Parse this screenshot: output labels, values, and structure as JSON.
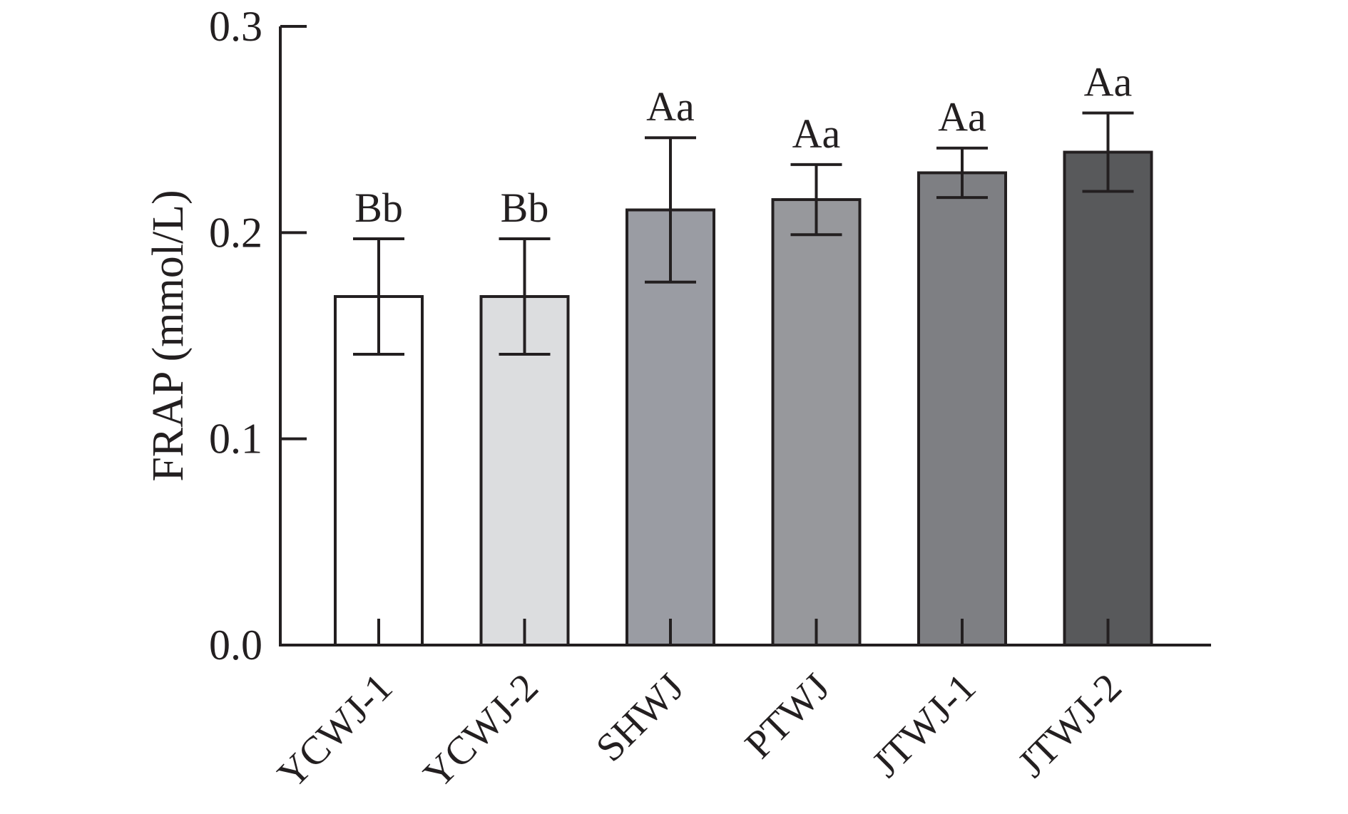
{
  "chart_data": {
    "type": "bar",
    "title": "",
    "xlabel": "",
    "ylabel": "FRAP (mmol/L)",
    "ylim": [
      0,
      0.3
    ],
    "yticks": [
      "0.0",
      "0.1",
      "0.2",
      "0.3"
    ],
    "grid": false,
    "categories": [
      "YCWJ-1",
      "YCWJ-2",
      "SHWJ",
      "PTWJ",
      "JTWJ-1",
      "JTWJ-2"
    ],
    "values": [
      0.169,
      0.169,
      0.211,
      0.216,
      0.229,
      0.239
    ],
    "errors": [
      0.028,
      0.028,
      0.035,
      0.017,
      0.012,
      0.019
    ],
    "significance": [
      "Bb",
      "Bb",
      "Aa",
      "Aa",
      "Aa",
      "Aa"
    ],
    "colors": [
      "#ffffff",
      "#dcdddf",
      "#9a9ca3",
      "#97989c",
      "#7e7f83",
      "#58595b"
    ]
  }
}
